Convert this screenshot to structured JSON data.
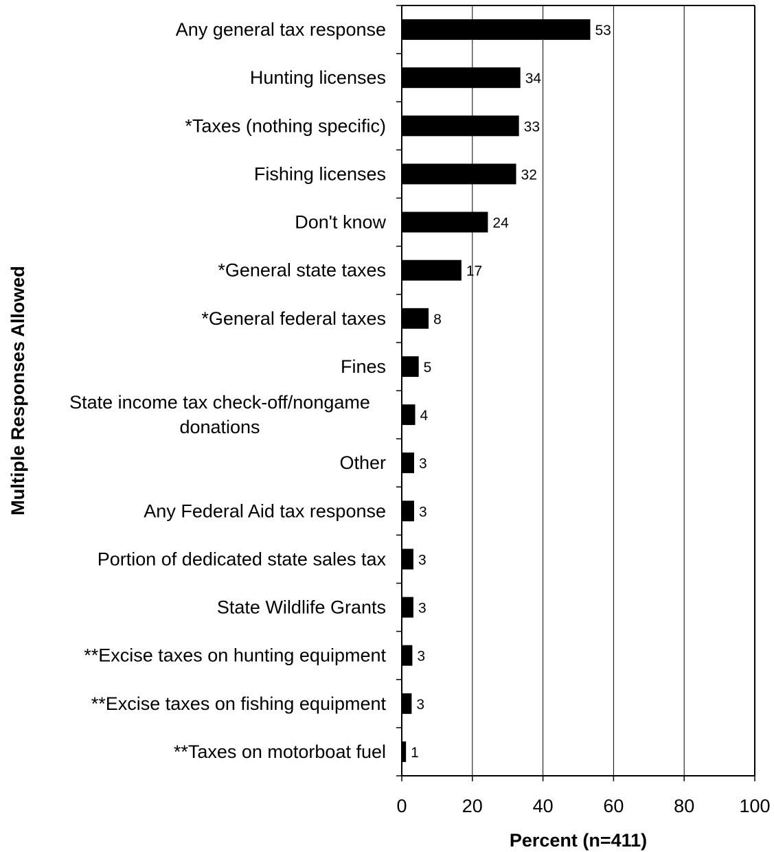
{
  "chart_data": {
    "type": "bar",
    "orientation": "horizontal",
    "categories": [
      "Any general tax response",
      "Hunting licenses",
      "*Taxes (nothing specific)",
      "Fishing licenses",
      "Don't know",
      "*General state taxes",
      "*General federal taxes",
      "Fines",
      "State income tax check-off/nongame donations",
      "Other",
      "Any Federal Aid tax response",
      "Portion of dedicated state sales tax",
      "State Wildlife Grants",
      "**Excise taxes on hunting equipment",
      "**Excise taxes on fishing equipment",
      "**Taxes on motorboat fuel"
    ],
    "category_label_lines": [
      [
        "Any general tax response"
      ],
      [
        "Hunting licenses"
      ],
      [
        "*Taxes (nothing specific)"
      ],
      [
        "Fishing licenses"
      ],
      [
        "Don't know"
      ],
      [
        "*General state taxes"
      ],
      [
        "*General federal taxes"
      ],
      [
        "Fines"
      ],
      [
        "State income tax check-off/nongame",
        "donations"
      ],
      [
        "Other"
      ],
      [
        "Any Federal Aid tax response"
      ],
      [
        "Portion of dedicated state sales tax"
      ],
      [
        "State Wildlife Grants"
      ],
      [
        "**Excise taxes on hunting equipment"
      ],
      [
        "**Excise taxes on fishing equipment"
      ],
      [
        "**Taxes on motorboat fuel"
      ]
    ],
    "values": [
      53.4,
      33.6,
      33.2,
      32.4,
      24.4,
      16.9,
      7.6,
      4.8,
      3.8,
      3.5,
      3.5,
      3.3,
      3.3,
      3.0,
      2.8,
      1.2
    ],
    "value_labels": [
      "53",
      "34",
      "33",
      "32",
      "24",
      "17",
      "8",
      "5",
      "4",
      "3",
      "3",
      "3",
      "3",
      "3",
      "3",
      "1"
    ],
    "xlim": [
      0,
      100
    ],
    "xticks": [
      0,
      20,
      40,
      60,
      80,
      100
    ],
    "tick_labels": [
      "0",
      "20",
      "40",
      "60",
      "80",
      "100"
    ],
    "xlabel": "Percent (n=411)",
    "ylabel": "Multiple Responses Allowed",
    "title": "",
    "grid": "vertical",
    "bar_color": "#000000",
    "grid_color": "#000000",
    "legend": "none"
  }
}
